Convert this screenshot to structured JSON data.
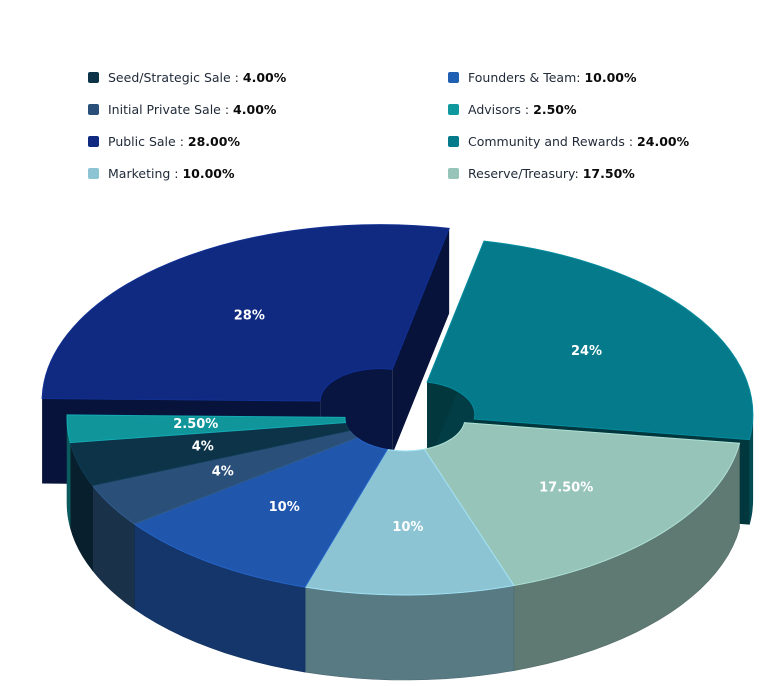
{
  "chart_data": {
    "type": "pie",
    "variant": "3d-donut",
    "legend_position": "top",
    "slices": [
      {
        "label": "Seed/Strategic Sale",
        "legend_value": "4.00%",
        "value": 4,
        "slice_label": "4%",
        "color": "#0d3349"
      },
      {
        "label": "Initial Private Sale",
        "legend_value": "4.00%",
        "value": 4,
        "slice_label": "4%",
        "color": "#2a4f78"
      },
      {
        "label": "Public Sale",
        "legend_value": "28.00%",
        "value": 28,
        "slice_label": "28%",
        "color": "#0f2a80"
      },
      {
        "label": "Marketing",
        "legend_value": "10.00%",
        "value": 10,
        "slice_label": "10%",
        "color": "#8cc4d4"
      },
      {
        "label": "Founders & Team",
        "legend_value": "10.00%",
        "value": 10,
        "slice_label": "10%",
        "color": "#2057ad"
      },
      {
        "label": "Advisors",
        "legend_value": "2.50%",
        "value": 2.5,
        "slice_label": "2.50%",
        "color": "#10959b"
      },
      {
        "label": "Community and Rewards",
        "legend_value": "24.00%",
        "value": 24,
        "slice_label": "24%",
        "color": "#047a8a"
      },
      {
        "label": "Reserve/Treasury",
        "legend_value": "17.50%",
        "value": 17.5,
        "slice_label": "17.50%",
        "color": "#97c4b9"
      }
    ],
    "legend": [
      {
        "label": "Seed/Strategic Sale :",
        "value": "4.00%",
        "color": "#0d3349"
      },
      {
        "label": "Founders & Team:",
        "value": "10.00%",
        "color": "#2060b3"
      },
      {
        "label": "Initial Private Sale :",
        "value": "4.00%",
        "color": "#2a4f78"
      },
      {
        "label": "Advisors :",
        "value": "2.50%",
        "color": "#0f989e"
      },
      {
        "label": "Public Sale :",
        "value": "28.00%",
        "color": "#0f2a80"
      },
      {
        "label": "Community and Rewards :",
        "value": "24.00%",
        "color": "#047a8a"
      },
      {
        "label": "Marketing :",
        "value": "10.00%",
        "color": "#8cc4d4"
      },
      {
        "label": "Reserve/Treasury:",
        "value": "17.50%",
        "color": "#97c4b9"
      }
    ]
  }
}
